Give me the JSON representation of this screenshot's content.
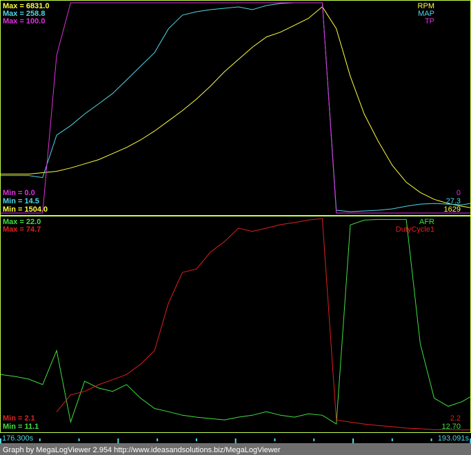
{
  "chart_data": [
    {
      "type": "line",
      "x": [
        176.3,
        176.8,
        177.3,
        177.8,
        178.3,
        178.8,
        179.3,
        179.8,
        180.3,
        180.8,
        181.3,
        181.8,
        182.3,
        182.8,
        183.3,
        183.8,
        184.3,
        184.8,
        185.3,
        185.8,
        186.3,
        186.8,
        187.3,
        187.8,
        188.3,
        188.8,
        189.3,
        189.8,
        190.3,
        190.8,
        191.3,
        191.8,
        192.3,
        192.8,
        193.091
      ],
      "xlim": [
        176.3,
        193.091
      ],
      "series": [
        {
          "name": "RPM",
          "color": "#ffff40",
          "ylim": [
            1504,
            6831
          ],
          "max_label": "Max = 6831.0",
          "min_label": "Min = 1504.0",
          "cursor_label": "1629",
          "values": [
            2490,
            2490,
            2490,
            2525,
            2560,
            2645,
            2750,
            2855,
            3010,
            3165,
            3355,
            3580,
            3840,
            4100,
            4390,
            4720,
            5085,
            5395,
            5705,
            5965,
            6085,
            6260,
            6435,
            6730,
            6175,
            4965,
            4010,
            3320,
            2715,
            2285,
            2025,
            1850,
            1745,
            1675,
            1640
          ]
        },
        {
          "name": "MAP",
          "color": "#50d8e8",
          "ylim": [
            14.5,
            258.8
          ],
          "max_label": "Max = 258.8",
          "min_label": "Min = 14.5",
          "cursor_label": "27.3",
          "values": [
            58.1,
            58.1,
            58.1,
            55.7,
            104.9,
            116,
            129.5,
            141.4,
            153.3,
            169.1,
            185,
            200.9,
            228.6,
            244.5,
            248.4,
            250.8,
            252.4,
            254,
            250.8,
            255.6,
            258,
            258.8,
            258.8,
            258.8,
            17.7,
            16.1,
            16.9,
            17.7,
            19.3,
            22.4,
            24.8,
            25.6,
            24.8,
            24,
            25.6
          ]
        },
        {
          "name": "TP",
          "color": "#e030e0",
          "ylim": [
            0,
            100
          ],
          "max_label": "Max = 100.0",
          "min_label": "Min = 0.0",
          "cursor_label": "0",
          "values": [
            0,
            0,
            0,
            0,
            75,
            100,
            100,
            100,
            100,
            100,
            100,
            100,
            100,
            100,
            100,
            100,
            100,
            100,
            100,
            100,
            100,
            100,
            100,
            100,
            0,
            0,
            0,
            0,
            0,
            0,
            0,
            0,
            0,
            0,
            0
          ]
        }
      ]
    },
    {
      "type": "line",
      "x": [
        176.3,
        176.8,
        177.3,
        177.8,
        178.3,
        178.8,
        179.3,
        179.8,
        180.3,
        180.8,
        181.3,
        181.8,
        182.3,
        182.8,
        183.3,
        183.8,
        184.3,
        184.8,
        185.3,
        185.8,
        186.3,
        186.8,
        187.3,
        187.8,
        188.3,
        188.8,
        189.3,
        189.8,
        190.3,
        190.8,
        191.3,
        191.8,
        192.3,
        192.8,
        193.091
      ],
      "xlim": [
        176.3,
        193.091
      ],
      "series": [
        {
          "name": "AFR",
          "color": "#40e040",
          "ylim": [
            11.1,
            22.0
          ],
          "max_label": "Max = 22.0",
          "min_label": "Min = 11.1",
          "cursor_label": "12.70",
          "values": [
            13.97,
            13.87,
            13.73,
            13.45,
            15.2,
            11.52,
            13.62,
            13.27,
            13.1,
            13.45,
            12.75,
            12.22,
            12.05,
            11.87,
            11.77,
            11.7,
            11.63,
            11.77,
            11.87,
            12.05,
            11.87,
            11.77,
            11.94,
            11.87,
            11.42,
            21.67,
            21.92,
            21.95,
            21.95,
            21.95,
            15.55,
            12.75,
            12.33,
            12.57,
            12.82
          ]
        },
        {
          "name": "DutyCycle1",
          "color": "#e02020",
          "ylim": [
            2.1,
            74.7
          ],
          "max_label": "Max = 74.7",
          "min_label": "Min = 2.1",
          "cursor_label": "2.2",
          "values": [
            null,
            null,
            null,
            null,
            8.4,
            14.2,
            15.4,
            17.7,
            19.4,
            21.2,
            24.7,
            29.4,
            45.7,
            56.2,
            57.4,
            63.2,
            66.8,
            71.4,
            70.3,
            71.4,
            72.6,
            73.3,
            74.2,
            74.7,
            5.6,
            4.9,
            4.2,
            3.7,
            3.3,
            2.8,
            2.6,
            2.3,
            2.3,
            2.2,
            2.2
          ]
        }
      ]
    }
  ],
  "time_axis": {
    "xlim": [
      176.3,
      193.091
    ],
    "xticks": [
      176.3,
      177.7,
      179.1,
      180.5,
      181.9,
      183.3,
      184.7,
      186.1,
      187.5,
      188.9,
      190.3,
      191.7,
      193.1
    ],
    "start_label": "176.300s",
    "end_label": "193.091s"
  },
  "footer": "Graph by MegaLogViewer 2.954 http://www.ideasandsolutions.biz/MegaLogViewer"
}
